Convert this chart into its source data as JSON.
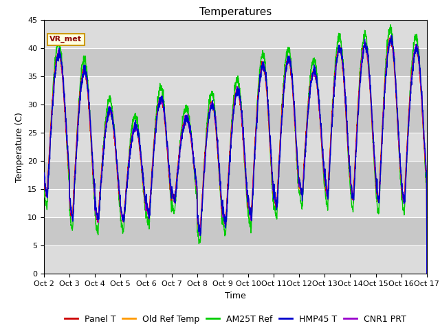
{
  "title": "Temperatures",
  "xlabel": "Time",
  "ylabel": "Temperature (C)",
  "ylim": [
    0,
    45
  ],
  "yticks": [
    0,
    5,
    10,
    15,
    20,
    25,
    30,
    35,
    40,
    45
  ],
  "annotation_text": "VR_met",
  "legend_labels": [
    "Panel T",
    "Old Ref Temp",
    "AM25T Ref",
    "HMP45 T",
    "CNR1 PRT"
  ],
  "line_colors": [
    "#cc0000",
    "#ff9900",
    "#00cc00",
    "#0000cc",
    "#9900cc"
  ],
  "title_fontsize": 11,
  "axis_fontsize": 9,
  "tick_fontsize": 8,
  "legend_fontsize": 9,
  "num_days": 15,
  "points_per_day": 144,
  "x_tick_labels": [
    "Oct 2",
    "Oct 3",
    "Oct 4",
    "Oct 5",
    "Oct 6",
    "Oct 7",
    "Oct 8",
    "Oct 9",
    "Oct 10",
    "Oct 11",
    "Oct 12",
    "Oct 13",
    "Oct 14",
    "Oct 15",
    "Oct 16",
    "Oct 17"
  ],
  "daily_min": [
    14,
    10,
    9.5,
    9.5,
    10.5,
    13,
    7.5,
    9,
    10,
    12,
    14,
    14,
    13.5,
    13,
    13,
    13
  ],
  "daily_max": [
    39,
    36,
    29,
    26,
    31,
    27.5,
    30,
    32.5,
    37,
    38,
    36,
    40,
    40.5,
    41.5,
    40,
    40
  ],
  "band_colors": [
    "#dcdcdc",
    "#c8c8c8"
  ],
  "bg_color": "#d8d8d8"
}
